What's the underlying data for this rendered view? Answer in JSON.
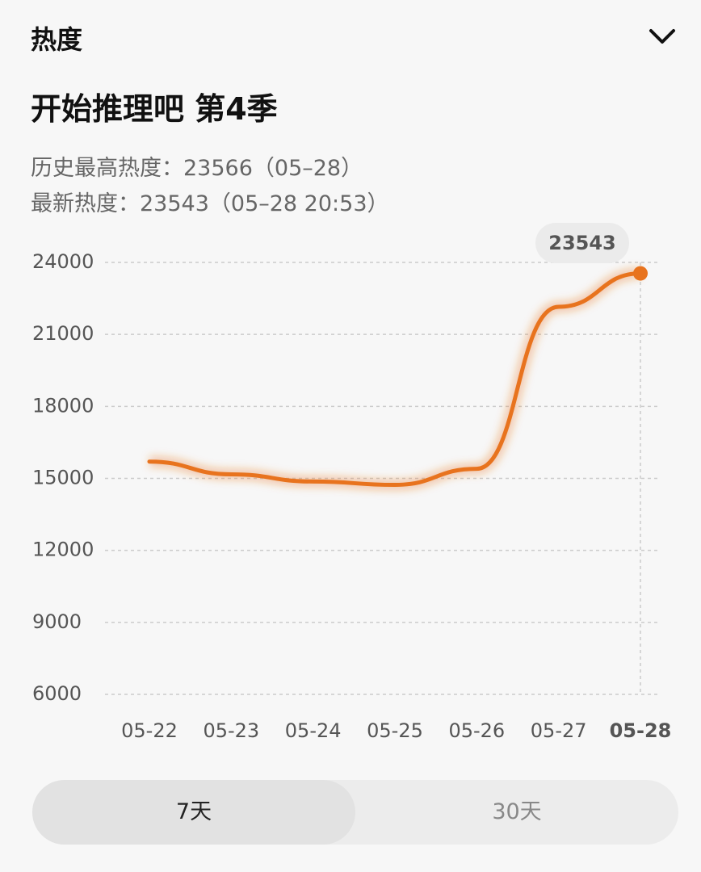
{
  "header": {
    "title": "热度"
  },
  "show": {
    "title": "开始推理吧 第4季",
    "stats": [
      "历史最高热度：23566（05–28）",
      "最新热度：23543（05–28 20:53）"
    ]
  },
  "chart_data": {
    "type": "line",
    "categories": [
      "05-22",
      "05-23",
      "05-24",
      "05-25",
      "05-26",
      "05-27",
      "05-28"
    ],
    "values": [
      15700,
      15170,
      14870,
      14730,
      15400,
      22150,
      23543
    ],
    "color": "#e8731e",
    "ylim": [
      6000,
      24000
    ],
    "yticks": [
      6000,
      9000,
      12000,
      15000,
      18000,
      21000,
      24000
    ],
    "grid": true
  },
  "tabs": [
    "7天",
    "30天"
  ]
}
